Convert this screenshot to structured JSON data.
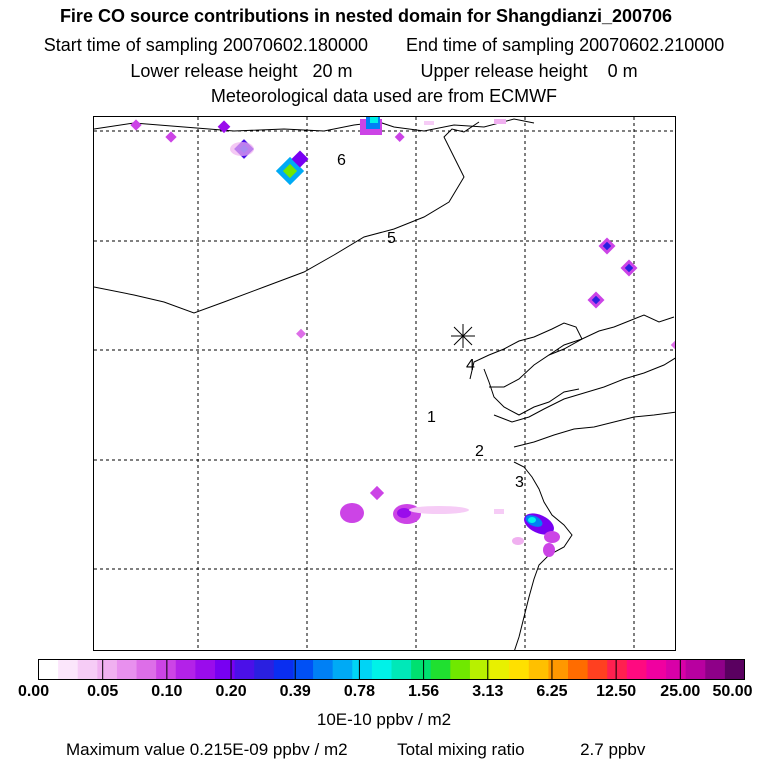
{
  "header": {
    "title": "Fire CO source contributions in nested domain for Shangdianzi_200706",
    "start_label": "Start time of sampling 20070602.180000",
    "end_label": "End time of sampling 20070602.210000",
    "lower_label": "Lower release height   20 m",
    "upper_label": "Upper release height    0 m",
    "met_label": "Meteorological data used are from ECMWF"
  },
  "colorbar": {
    "ticks": [
      "0.00",
      "0.05",
      "0.10",
      "0.20",
      "0.39",
      "0.78",
      "1.56",
      "3.13",
      "6.25",
      "12.50",
      "25.00",
      "50.00"
    ],
    "units": "10E-10 ppbv / m2",
    "colors": [
      "#ffffff",
      "#fbe6fb",
      "#f6ccf6",
      "#f0b0f0",
      "#e890ee",
      "#dd6ee8",
      "#cc44e6",
      "#b322e8",
      "#9a0cec",
      "#7800f2",
      "#4b10e8",
      "#2a20e0",
      "#0a2ef0",
      "#0050f5",
      "#0080f5",
      "#00aaf5",
      "#00d4f5",
      "#00f2e8",
      "#00e8b8",
      "#00e070",
      "#20e030",
      "#70e800",
      "#b8f000",
      "#e8f000",
      "#ffe000",
      "#ffc000",
      "#ff9800",
      "#ff6c00",
      "#ff4020",
      "#ff2050",
      "#ff0a80",
      "#f000a0",
      "#d800a8",
      "#b800a0",
      "#8e0088",
      "#5a0060"
    ]
  },
  "footer": {
    "max_label": "Maximum value  0.215E-09 ppbv / m2",
    "total_label": "Total mixing ratio",
    "total_value": "2.7 ppbv"
  },
  "chart_data": {
    "type": "heatmap",
    "title": "Fire CO source contributions in nested domain for Shangdianzi_200706",
    "colorbar_levels": [
      0.0,
      0.05,
      0.1,
      0.2,
      0.39,
      0.78,
      1.56,
      3.13,
      6.25,
      12.5,
      25.0,
      50.0
    ],
    "units": "10E-10 ppbv / m2",
    "receptor_marker": "Shangdianzi",
    "day_labels": [
      "1",
      "2",
      "3",
      "4",
      "5",
      "6"
    ],
    "maximum_value": "0.215E-09 ppbv / m2",
    "total_mixing_ratio": "2.7 ppbv",
    "grid": "dashed"
  }
}
